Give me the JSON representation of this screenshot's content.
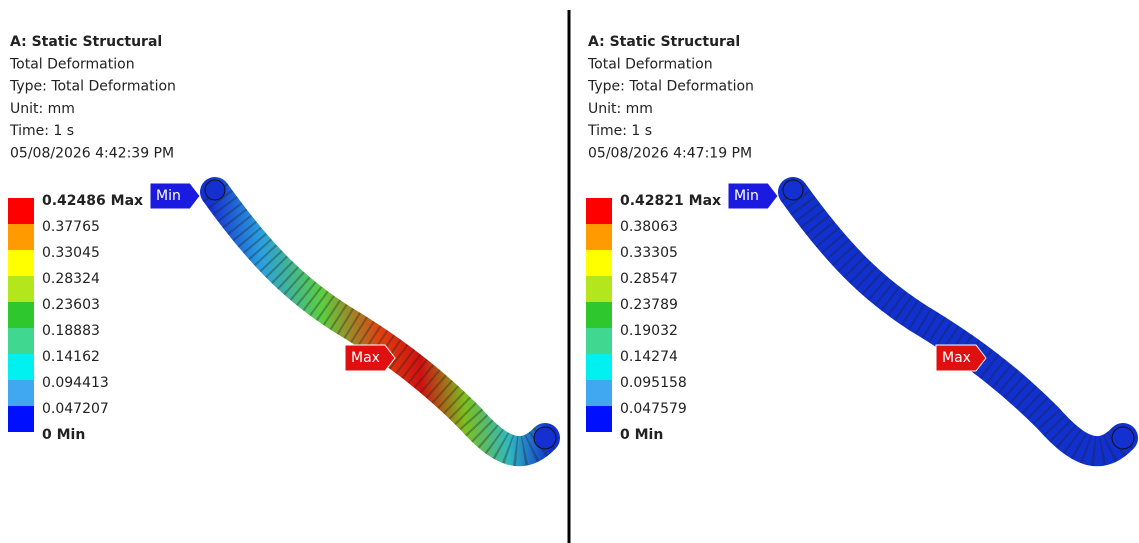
{
  "panels": [
    {
      "header": [
        "A: Static Structural",
        "Total Deformation",
        "Type: Total Deformation",
        "Unit: mm",
        "Time: 1 s",
        "05/08/2026 4:42:39 PM"
      ],
      "legend": [
        "0.42486 Max",
        "0.37765",
        "0.33045",
        "0.28324",
        "0.23603",
        "0.18883",
        "0.14162",
        "0.094413",
        "0.047207",
        "0 Min"
      ],
      "min_tag": "Min",
      "max_tag": "Max"
    },
    {
      "header": [
        "A: Static Structural",
        "Total Deformation",
        "Type: Total Deformation",
        "Unit: mm",
        "Time: 1 s",
        "05/08/2026 4:47:19 PM"
      ],
      "legend": [
        "0.42821 Max",
        "0.38063",
        "0.33305",
        "0.28547",
        "0.23789",
        "0.19032",
        "0.14274",
        "0.095158",
        "0.047579",
        "0 Min"
      ],
      "min_tag": "Min",
      "max_tag": "Max"
    }
  ]
}
